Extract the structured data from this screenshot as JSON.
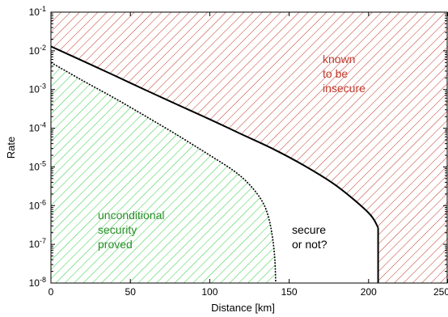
{
  "chart_data": {
    "type": "area",
    "xlabel": "Distance [km]",
    "ylabel": "Rate",
    "xlim": [
      0,
      250
    ],
    "ylim": [
      1e-08,
      0.1
    ],
    "y_scale": "log",
    "grid": false,
    "x_ticks": [
      0,
      50,
      100,
      150,
      200,
      250
    ],
    "x_tick_labels": [
      "0",
      "50",
      "100",
      "150",
      "200",
      "250"
    ],
    "y_ticks": [
      1e-08,
      1e-07,
      1e-06,
      1e-05,
      0.0001,
      0.001,
      0.01,
      0.1
    ],
    "y_tick_labels": [
      {
        "base": "10",
        "exp": "-8"
      },
      {
        "base": "10",
        "exp": "-7"
      },
      {
        "base": "10",
        "exp": "-6"
      },
      {
        "base": "10",
        "exp": "-5"
      },
      {
        "base": "10",
        "exp": "-4"
      },
      {
        "base": "10",
        "exp": "-3"
      },
      {
        "base": "10",
        "exp": "-2"
      },
      {
        "base": "10",
        "exp": "-1"
      }
    ],
    "series": [
      {
        "style": "solid",
        "color": "#000000",
        "x": [
          0,
          20,
          40,
          60,
          80,
          100,
          120,
          140,
          160,
          180,
          200,
          206
        ],
        "y": [
          0.013,
          0.0055,
          0.0023,
          0.00095,
          0.0004,
          0.00017,
          7e-05,
          2.9e-05,
          1.05e-05,
          3.2e-06,
          6.5e-07,
          2.7e-07
        ]
      },
      {
        "style": "dotted",
        "color": "#000000",
        "x": [
          0,
          20,
          40,
          60,
          80,
          100,
          115,
          125,
          133,
          137,
          139.5,
          141,
          141.5
        ],
        "y": [
          0.005,
          0.0017,
          0.0006,
          0.0002,
          6.5e-05,
          2e-05,
          8e-06,
          3.5e-06,
          1.3e-06,
          5e-07,
          1.5e-07,
          4e-08,
          1e-08
        ]
      }
    ],
    "regions": [
      {
        "label_lines": [
          "known",
          "to be",
          "insecure"
        ],
        "fill": "hatch",
        "color": "#c0392b"
      },
      {
        "label_lines": [
          "unconditional",
          "security",
          "proved"
        ],
        "fill": "hatch",
        "color": "#2ecc40"
      },
      {
        "label_lines": [
          "secure",
          "or not?"
        ],
        "fill": "none",
        "color": "#000000"
      }
    ]
  }
}
